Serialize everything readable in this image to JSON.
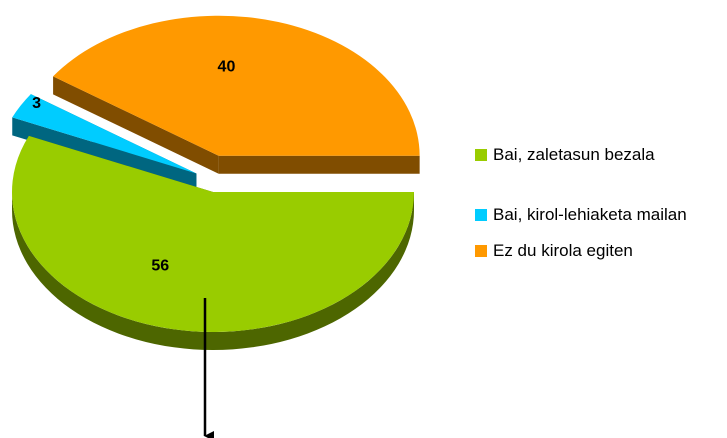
{
  "chart_data": {
    "type": "pie",
    "categories": [
      "Bai, zaletasun bezala",
      "Bai, kirol-lehiaketa mailan",
      "Ez du kirola egiten"
    ],
    "values": [
      56,
      3,
      40
    ],
    "colors": [
      "#99cc00",
      "#00ccff",
      "#ff9900"
    ],
    "explode": [
      false,
      true,
      true
    ],
    "legend": "right"
  }
}
